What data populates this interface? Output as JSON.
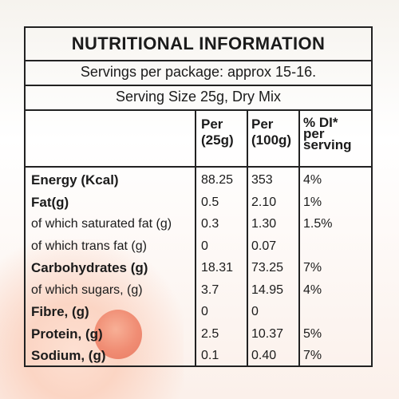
{
  "panel": {
    "title": "NUTRITIONAL INFORMATION",
    "servings": "Servings per package: approx 15-16.",
    "serving_size": "Serving Size 25g, Dry Mix"
  },
  "columns": {
    "per_25g": "Per\n(25g)",
    "per_100g": "Per\n(100g)",
    "di": "% DI*\nper\nserving"
  },
  "rows": [
    {
      "label": "Energy (Kcal)",
      "bold": true,
      "per_25g": "88.25",
      "per_100g": "353",
      "di": "4%"
    },
    {
      "label": "Fat(g)",
      "bold": true,
      "per_25g": "0.5",
      "per_100g": "2.10",
      "di": "1%"
    },
    {
      "label": "of which saturated fat (g)",
      "bold": false,
      "per_25g": "0.3",
      "per_100g": "1.30",
      "di": "1.5%"
    },
    {
      "label": "of which trans fat (g)",
      "bold": false,
      "per_25g": "0",
      "per_100g": "0.07",
      "di": ""
    },
    {
      "label": "Carbohydrates (g)",
      "bold": true,
      "per_25g": "18.31",
      "per_100g": "73.25",
      "di": "7%"
    },
    {
      "label": "of which sugars, (g)",
      "bold": false,
      "per_25g": "3.7",
      "per_100g": "14.95",
      "di": "4%"
    },
    {
      "label": "Fibre, (g)",
      "bold": true,
      "per_25g": "0",
      "per_100g": "0",
      "di": ""
    },
    {
      "label": "Protein, (g)",
      "bold": true,
      "per_25g": "2.5",
      "per_100g": "10.37",
      "di": "5%"
    },
    {
      "label": "Sodium, (g)",
      "bold": true,
      "per_25g": "0.1",
      "per_100g": "0.40",
      "di": "7%"
    }
  ]
}
